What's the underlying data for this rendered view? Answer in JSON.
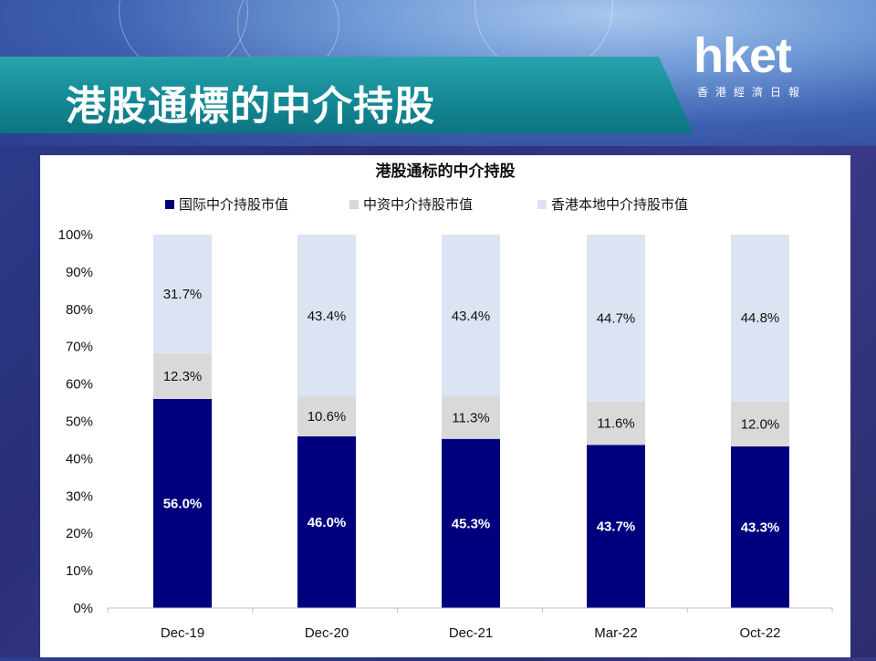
{
  "header": {
    "title": "港股通標的中介持股",
    "logo_text": "hket",
    "logo_subtext": "香港經濟日報"
  },
  "colors": {
    "international": "#00007f",
    "chinese": "#d9d9d9",
    "local": "#dce3f2",
    "banner": "#138a96"
  },
  "chart_data": {
    "type": "bar",
    "stacked": true,
    "title": "港股通标的中介持股",
    "categories": [
      "Dec-19",
      "Dec-20",
      "Dec-21",
      "Mar-22",
      "Oct-22"
    ],
    "series": [
      {
        "name": "国际中介持股市值",
        "values": [
          56.0,
          46.0,
          45.3,
          43.7,
          43.3
        ],
        "labels": [
          "56.0%",
          "46.0%",
          "45.3%",
          "43.7%",
          "43.3%"
        ]
      },
      {
        "name": "中资中介持股市值",
        "values": [
          12.3,
          10.6,
          11.3,
          11.6,
          12.0
        ],
        "labels": [
          "12.3%",
          "10.6%",
          "11.3%",
          "11.6%",
          "12.0%"
        ]
      },
      {
        "name": "香港本地中介持股市值",
        "values": [
          31.7,
          43.4,
          43.4,
          44.7,
          44.8
        ],
        "labels": [
          "31.7%",
          "43.4%",
          "43.4%",
          "44.7%",
          "44.8%"
        ]
      }
    ],
    "y_ticks": [
      "0%",
      "10%",
      "20%",
      "30%",
      "40%",
      "50%",
      "60%",
      "70%",
      "80%",
      "90%",
      "100%"
    ],
    "ylim": [
      0,
      100
    ],
    "legend_position": "top",
    "grid": false
  }
}
